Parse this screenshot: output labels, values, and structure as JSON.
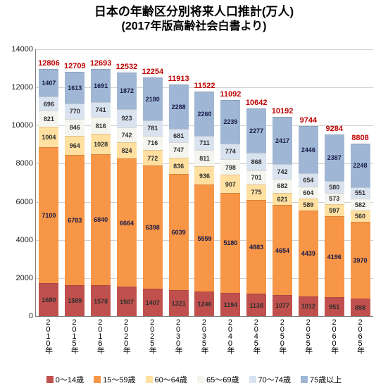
{
  "title_line1": "日本の年齢区分別将来人口推計(万人)",
  "title_line2": "(2017年版高齢社会白書より)",
  "chart": {
    "type": "stacked-bar",
    "y_max": 14000,
    "y_tick_step": 2000,
    "total_color": "#c00000",
    "grid_color": "#d0d0d0",
    "series": [
      {
        "name": "0～14歳",
        "color": "#c0504d"
      },
      {
        "name": "15～59歳",
        "color": "#f79646"
      },
      {
        "name": "60～64歳",
        "color": "#ffe0a0"
      },
      {
        "name": "65～69歳",
        "color": "#f5f5f0"
      },
      {
        "name": "70～74歳",
        "color": "#d9e2ef"
      },
      {
        "name": "75歳以上",
        "color": "#9fb7d4"
      }
    ],
    "categories": [
      "2010年",
      "2015年",
      "2016年",
      "2020年",
      "2025年",
      "2030年",
      "2035年",
      "2040年",
      "2045年",
      "2050年",
      "2055年",
      "2060年",
      "2065年"
    ],
    "totals": [
      12806,
      12709,
      12693,
      12532,
      12254,
      11913,
      11522,
      11092,
      10642,
      10192,
      9744,
      9284,
      8808
    ],
    "stacks": [
      [
        1680,
        7100,
        1004,
        821,
        696,
        1407
      ],
      [
        1589,
        6783,
        964,
        846,
        770,
        1613
      ],
      [
        1578,
        6840,
        1028,
        816,
        741,
        1691
      ],
      [
        1507,
        6664,
        824,
        742,
        923,
        1872
      ],
      [
        1407,
        6398,
        772,
        716,
        781,
        2180
      ],
      [
        1321,
        6039,
        836,
        747,
        681,
        2288
      ],
      [
        1246,
        5559,
        936,
        811,
        711,
        2260
      ],
      [
        1194,
        5180,
        907,
        798,
        774,
        2239
      ],
      [
        1138,
        4883,
        775,
        701,
        868,
        2277
      ],
      [
        1077,
        4654,
        621,
        682,
        742,
        2417
      ],
      [
        1012,
        4439,
        589,
        604,
        654,
        2446
      ],
      [
        951,
        4196,
        597,
        573,
        580,
        2387
      ],
      [
        898,
        3970,
        560,
        582,
        551,
        2248
      ]
    ]
  }
}
